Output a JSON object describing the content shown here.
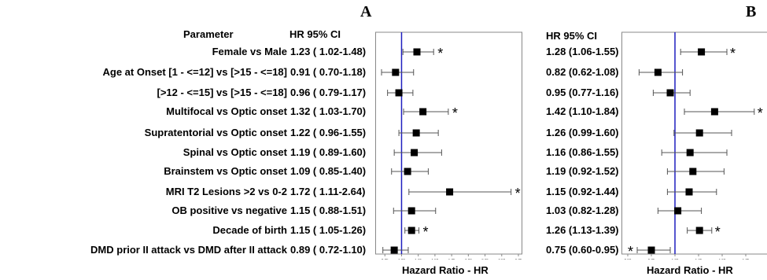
{
  "colors": {
    "reference_line": "#1f1fbf",
    "marker": "#000000",
    "ci": "#555555",
    "frame": "#888888"
  },
  "chart_data": [
    {
      "panel": "A",
      "type": "forest",
      "header_param": "Parameter",
      "header_hr": "HR 95% CI",
      "xlabel": "Hazard Ratio - HR",
      "xlim": [
        0.7,
        2.75
      ],
      "xticks": [
        0.75,
        1.0,
        1.25,
        1.5,
        1.75,
        2.0,
        2.25,
        2.5,
        2.75
      ],
      "xticklabels": [
        "0.75",
        "1.00",
        "1.25",
        "1.50",
        "1.75",
        "2.00",
        "2.25",
        "2.50",
        "2.75"
      ],
      "reference_line": 1.0,
      "rows": [
        {
          "label": "Female vs Male",
          "text": "1.23 ( 1.02-1.48)",
          "hr": 1.23,
          "lo": 1.02,
          "hi": 1.48,
          "sig": "*"
        },
        {
          "label": "Age at Onset   [1 - <=12] vs  [>15 - <=18]",
          "text": "0.91 ( 0.70-1.18)",
          "hr": 0.91,
          "lo": 0.7,
          "hi": 1.18,
          "sig": ""
        },
        {
          "label": "[>12 - <=15] vs  [>15 - <=18]",
          "text": "0.96 ( 0.79-1.17)",
          "hr": 0.96,
          "lo": 0.79,
          "hi": 1.17,
          "sig": ""
        },
        {
          "label": "Multifocal vs Optic onset",
          "text": "1.32 ( 1.03-1.70)",
          "hr": 1.32,
          "lo": 1.03,
          "hi": 1.7,
          "sig": "*"
        },
        {
          "label": "Supratentorial vs Optic onset",
          "text": "1.22 ( 0.96-1.55)",
          "hr": 1.22,
          "lo": 0.96,
          "hi": 1.55,
          "sig": ""
        },
        {
          "label": "Spinal vs Optic onset",
          "text": "1.19 ( 0.89-1.60)",
          "hr": 1.19,
          "lo": 0.89,
          "hi": 1.6,
          "sig": ""
        },
        {
          "label": "Brainstem vs Optic onset",
          "text": "1.09 ( 0.85-1.40)",
          "hr": 1.09,
          "lo": 0.85,
          "hi": 1.4,
          "sig": ""
        },
        {
          "label": "MRI T2 Lesions >2 vs 0-2",
          "text": "1.72 ( 1.11-2.64)",
          "hr": 1.72,
          "lo": 1.11,
          "hi": 2.64,
          "sig": "*"
        },
        {
          "label": "OB positive vs negative",
          "text": "1.15 ( 0.88-1.51)",
          "hr": 1.15,
          "lo": 0.88,
          "hi": 1.51,
          "sig": ""
        },
        {
          "label": "Decade of birth",
          "text": "1.15 ( 1.05-1.26)",
          "hr": 1.15,
          "lo": 1.05,
          "hi": 1.26,
          "sig": "*"
        },
        {
          "label": "DMD prior II attack vs  DMD after II attack",
          "text": "0.89 ( 0.72-1.10)",
          "hr": 0.89,
          "lo": 0.72,
          "hi": 1.1,
          "sig": ""
        }
      ]
    },
    {
      "panel": "B",
      "type": "forest",
      "header_hr": "HR 95% CI",
      "xlabel": "Hazard Ratio - HR",
      "xlim": [
        0.5,
        2.0
      ],
      "xticks": [
        0.5,
        0.75,
        1.0,
        1.25,
        1.5,
        1.75
      ],
      "xticklabels": [
        "0.50",
        "0.75",
        "1.00",
        "1.25",
        "1.50",
        "1.75"
      ],
      "reference_line": 1.0,
      "rows": [
        {
          "text": "1.28 (1.06-1.55)",
          "hr": 1.28,
          "lo": 1.06,
          "hi": 1.55,
          "sig": "*"
        },
        {
          "text": "0.82 (0.62-1.08)",
          "hr": 0.82,
          "lo": 0.62,
          "hi": 1.08,
          "sig": ""
        },
        {
          "text": "0.95 (0.77-1.16)",
          "hr": 0.95,
          "lo": 0.77,
          "hi": 1.16,
          "sig": ""
        },
        {
          "text": "1.42 (1.10-1.84)",
          "hr": 1.42,
          "lo": 1.1,
          "hi": 1.84,
          "sig": "*"
        },
        {
          "text": "1.26 (0.99-1.60)",
          "hr": 1.26,
          "lo": 0.99,
          "hi": 1.6,
          "sig": ""
        },
        {
          "text": "1.16 (0.86-1.55)",
          "hr": 1.16,
          "lo": 0.86,
          "hi": 1.55,
          "sig": ""
        },
        {
          "text": "1.19 (0.92-1.52)",
          "hr": 1.19,
          "lo": 0.92,
          "hi": 1.52,
          "sig": ""
        },
        {
          "text": "1.15 (0.92-1.44)",
          "hr": 1.15,
          "lo": 0.92,
          "hi": 1.44,
          "sig": ""
        },
        {
          "text": "1.03 (0.82-1.28)",
          "hr": 1.03,
          "lo": 0.82,
          "hi": 1.28,
          "sig": ""
        },
        {
          "text": "1.26 (1.13-1.39)",
          "hr": 1.26,
          "lo": 1.13,
          "hi": 1.39,
          "sig": "*"
        },
        {
          "text": "0.75 (0.60-0.95)",
          "hr": 0.75,
          "lo": 0.6,
          "hi": 0.95,
          "sig": "*"
        }
      ]
    }
  ]
}
